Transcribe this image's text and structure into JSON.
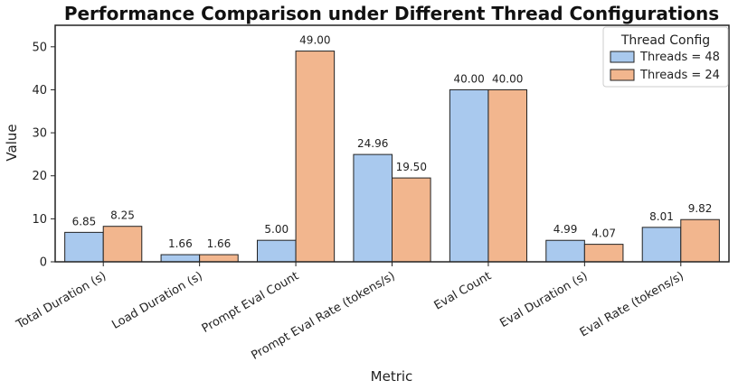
{
  "chart_data": {
    "type": "bar",
    "title": "Performance Comparison under Different Thread Configurations",
    "xlabel": "Metric",
    "ylabel": "Value",
    "ylim": [
      0,
      55
    ],
    "yticks": [
      0,
      10,
      20,
      30,
      40,
      50
    ],
    "grid": false,
    "legend_title": "Thread Config",
    "legend_position": "top-right",
    "categories": [
      "Total Duration (s)",
      "Load Duration (s)",
      "Prompt Eval Count",
      "Prompt Eval Rate (tokens/s)",
      "Eval Count",
      "Eval Duration (s)",
      "Eval Rate (tokens/s)"
    ],
    "series": [
      {
        "name": "Threads = 48",
        "color": "#a9c9ee",
        "values": [
          6.85,
          1.66,
          5.0,
          24.96,
          40.0,
          4.99,
          8.01
        ],
        "labels": [
          "6.85",
          "1.66",
          "5.00",
          "24.96",
          "40.00",
          "4.99",
          "8.01"
        ]
      },
      {
        "name": "Threads = 24",
        "color": "#f2b68e",
        "values": [
          8.25,
          1.66,
          49.0,
          19.5,
          40.0,
          4.07,
          9.82
        ],
        "labels": [
          "8.25",
          "1.66",
          "49.00",
          "19.50",
          "40.00",
          "4.07",
          "9.82"
        ]
      }
    ]
  }
}
